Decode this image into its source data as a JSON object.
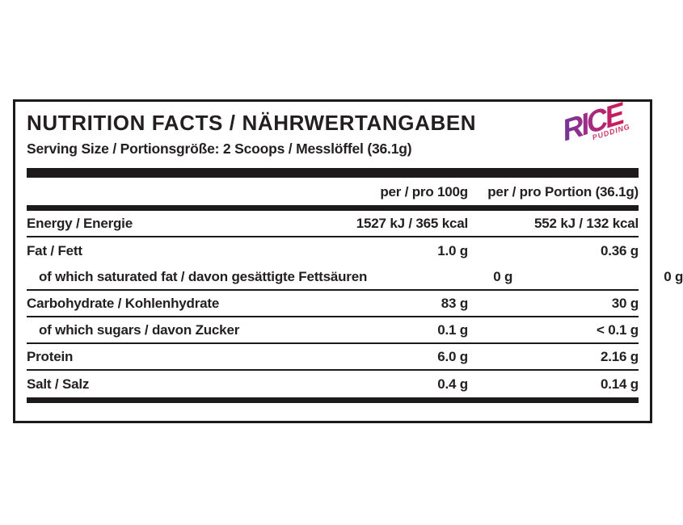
{
  "label": {
    "title": "NUTRITION FACTS / NÄHRWERTANGABEN",
    "serving_line": "Serving Size / Portionsgröße: 2 Scoops / Messlöffel (36.1g)",
    "logo": {
      "main": "RICE",
      "sub": "PUDDING",
      "gradient_start": "#5e3a9e",
      "gradient_end": "#d6164e"
    },
    "columns": {
      "per_100g": "per / pro 100g",
      "per_portion": "per / pro Portion (36.1g)"
    },
    "rows": [
      {
        "name": "Energy / Energie",
        "per100": "1527 kJ / 365 kcal",
        "portion": "552 kJ / 132 kcal",
        "indent": false,
        "divider_below": true
      },
      {
        "name": "Fat / Fett",
        "per100": "1.0 g",
        "portion": "0.36 g",
        "indent": false,
        "divider_below": false
      },
      {
        "name": "of which saturated fat / davon gesättigte Fettsäuren",
        "per100": "0 g",
        "portion": "0 g",
        "indent": true,
        "divider_below": true
      },
      {
        "name": "Carbohydrate / Kohlenhydrate",
        "per100": "83 g",
        "portion": "30 g",
        "indent": false,
        "divider_below": true
      },
      {
        "name": "of which sugars / davon Zucker",
        "per100": "0.1 g",
        "portion": "< 0.1 g",
        "indent": true,
        "divider_below": true
      },
      {
        "name": "Protein",
        "per100": "6.0 g",
        "portion": "2.16 g",
        "indent": false,
        "divider_below": true
      },
      {
        "name": "Salt / Salz",
        "per100": "0.4 g",
        "portion": "0.14 g",
        "indent": false,
        "divider_below": false
      }
    ],
    "text_color": "#231f20"
  }
}
